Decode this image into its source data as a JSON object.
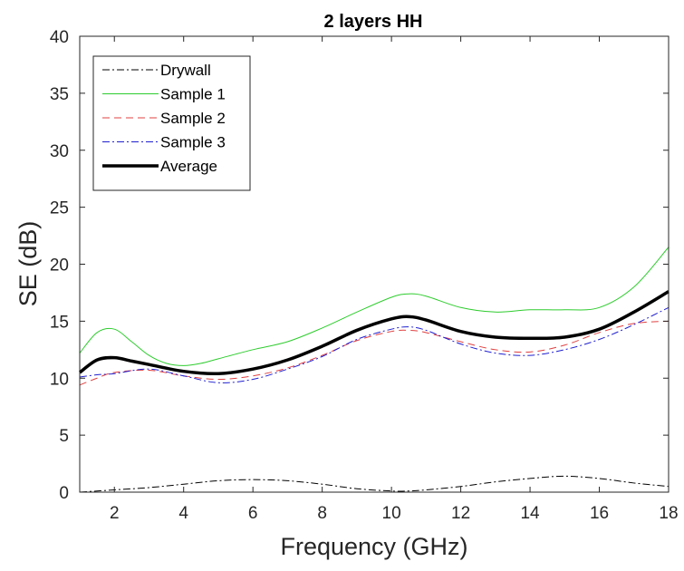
{
  "chart_data": {
    "type": "line",
    "title": "2 layers HH",
    "xlabel": "Frequency (GHz)",
    "ylabel": "SE (dB)",
    "xlim": [
      1,
      18
    ],
    "ylim": [
      0,
      40
    ],
    "xticks": [
      2,
      4,
      6,
      8,
      10,
      12,
      14,
      16,
      18
    ],
    "yticks": [
      0,
      5,
      10,
      15,
      20,
      25,
      30,
      35,
      40
    ],
    "grid": false,
    "legend_position": "top-left",
    "series": [
      {
        "name": "Drywall",
        "color": "#000000",
        "dash": "dashdot",
        "width": 1,
        "x": [
          1,
          2,
          3,
          4,
          5,
          6,
          7,
          8,
          9,
          10,
          10.5,
          11,
          12,
          13,
          14,
          15,
          16,
          17,
          18
        ],
        "y": [
          0.0,
          0.2,
          0.4,
          0.7,
          1.0,
          1.1,
          1.0,
          0.7,
          0.3,
          0.1,
          0.1,
          0.2,
          0.5,
          0.9,
          1.2,
          1.4,
          1.2,
          0.8,
          0.5
        ]
      },
      {
        "name": "Sample 1",
        "color": "#2ecc2e",
        "dash": "solid",
        "width": 1,
        "x": [
          1,
          1.5,
          2,
          2.5,
          3,
          3.5,
          4,
          4.5,
          5,
          6,
          7,
          8,
          9,
          10,
          10.5,
          11,
          12,
          13,
          14,
          15,
          16,
          17,
          18
        ],
        "y": [
          12.2,
          14.0,
          14.3,
          13.2,
          12.0,
          11.3,
          11.1,
          11.3,
          11.7,
          12.5,
          13.2,
          14.4,
          15.8,
          17.1,
          17.4,
          17.2,
          16.2,
          15.8,
          16.0,
          16.0,
          16.2,
          18.0,
          21.5
        ]
      },
      {
        "name": "Sample 2",
        "color": "#e04040",
        "dash": "dashed",
        "width": 1,
        "x": [
          1,
          1.5,
          2,
          3,
          4,
          5,
          6,
          7,
          8,
          9,
          10,
          10.5,
          11,
          12,
          13,
          14,
          15,
          16,
          17,
          18
        ],
        "y": [
          9.4,
          10.0,
          10.5,
          10.7,
          10.2,
          9.9,
          10.2,
          10.9,
          12.0,
          13.3,
          14.1,
          14.2,
          14.0,
          13.2,
          12.5,
          12.3,
          12.9,
          14.0,
          14.8,
          15.0
        ]
      },
      {
        "name": "Sample 3",
        "color": "#2020d0",
        "dash": "dashdot",
        "width": 1,
        "x": [
          1,
          1.5,
          2,
          3,
          4,
          5,
          6,
          7,
          8,
          9,
          10,
          10.5,
          11,
          12,
          13,
          14,
          15,
          16,
          17,
          18
        ],
        "y": [
          10.1,
          10.3,
          10.4,
          10.8,
          10.2,
          9.6,
          9.9,
          10.8,
          11.9,
          13.4,
          14.3,
          14.5,
          14.2,
          13.0,
          12.2,
          12.0,
          12.5,
          13.4,
          14.7,
          16.2
        ]
      },
      {
        "name": "Average",
        "color": "#000000",
        "dash": "solid",
        "width": 3.5,
        "x": [
          1,
          1.5,
          2,
          2.5,
          3,
          4,
          5,
          6,
          7,
          8,
          9,
          10,
          10.5,
          11,
          12,
          13,
          14,
          15,
          16,
          17,
          18
        ],
        "y": [
          10.5,
          11.6,
          11.8,
          11.5,
          11.2,
          10.6,
          10.4,
          10.8,
          11.6,
          12.8,
          14.2,
          15.2,
          15.4,
          15.1,
          14.1,
          13.6,
          13.5,
          13.6,
          14.3,
          15.8,
          17.6
        ]
      }
    ]
  }
}
